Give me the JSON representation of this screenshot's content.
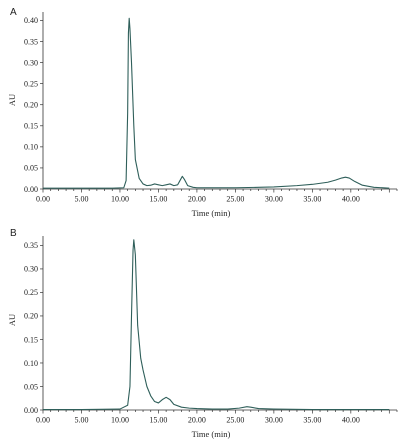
{
  "chart_data": [
    {
      "panel": "A",
      "type": "line",
      "xlabel": "Time (min)",
      "ylabel": "AU",
      "xlim": [
        0,
        46
      ],
      "ylim": [
        0,
        0.42
      ],
      "x_ticks": [
        "0.00",
        "5.00",
        "10.00",
        "15.00",
        "20.00",
        "25.00",
        "30.00",
        "35.00",
        "40.00"
      ],
      "y_ticks": [
        "0.00",
        "0.05",
        "0.10",
        "0.15",
        "0.20",
        "0.25",
        "0.30",
        "0.35",
        "0.40"
      ],
      "line_color": "#2f5f5a",
      "grid": false,
      "series": [
        {
          "x": [
            0,
            5,
            9,
            10.5,
            10.8,
            11.0,
            11.1,
            11.2,
            11.3,
            11.5,
            11.8,
            12.0,
            12.5,
            13.0,
            13.5,
            14.0,
            14.5,
            15.0,
            15.5,
            16.0,
            16.5,
            17.0,
            17.5,
            17.8,
            18.1,
            18.4,
            18.8,
            19.5,
            20,
            22,
            25,
            28,
            30,
            33,
            35,
            37,
            38,
            38.8,
            39.3,
            39.8,
            40.5,
            41.5,
            43,
            45
          ],
          "y": [
            0.002,
            0.002,
            0.002,
            0.003,
            0.02,
            0.18,
            0.37,
            0.405,
            0.38,
            0.3,
            0.15,
            0.07,
            0.025,
            0.012,
            0.008,
            0.009,
            0.012,
            0.01,
            0.008,
            0.01,
            0.012,
            0.008,
            0.01,
            0.02,
            0.03,
            0.022,
            0.008,
            0.004,
            0.003,
            0.003,
            0.003,
            0.004,
            0.005,
            0.008,
            0.011,
            0.016,
            0.021,
            0.026,
            0.028,
            0.026,
            0.018,
            0.009,
            0.004,
            0.002
          ]
        }
      ]
    },
    {
      "panel": "B",
      "type": "line",
      "xlabel": "Time (min)",
      "ylabel": "AU",
      "xlim": [
        0,
        46
      ],
      "ylim": [
        0,
        0.37
      ],
      "x_ticks": [
        "0.00",
        "5.00",
        "10.00",
        "15.00",
        "20.00",
        "25.00",
        "30.00",
        "35.00",
        "40.00"
      ],
      "y_ticks": [
        "0.00",
        "0.05",
        "0.10",
        "0.15",
        "0.20",
        "0.25",
        "0.30",
        "0.35"
      ],
      "line_color": "#2f5f5a",
      "grid": false,
      "series": [
        {
          "x": [
            0,
            5,
            10,
            11.0,
            11.3,
            11.5,
            11.7,
            11.8,
            12.0,
            12.3,
            12.7,
            13.0,
            13.5,
            14.0,
            14.5,
            15.0,
            15.5,
            16.0,
            16.5,
            17.0,
            18.0,
            19,
            20,
            22,
            24,
            25.5,
            26.5,
            27,
            28,
            30,
            35,
            40,
            45
          ],
          "y": [
            0.001,
            0.001,
            0.002,
            0.01,
            0.05,
            0.2,
            0.34,
            0.362,
            0.33,
            0.18,
            0.11,
            0.085,
            0.05,
            0.03,
            0.018,
            0.015,
            0.022,
            0.027,
            0.022,
            0.012,
            0.006,
            0.004,
            0.003,
            0.002,
            0.002,
            0.004,
            0.007,
            0.006,
            0.003,
            0.002,
            0.001,
            0.001,
            0.001
          ]
        }
      ]
    }
  ]
}
